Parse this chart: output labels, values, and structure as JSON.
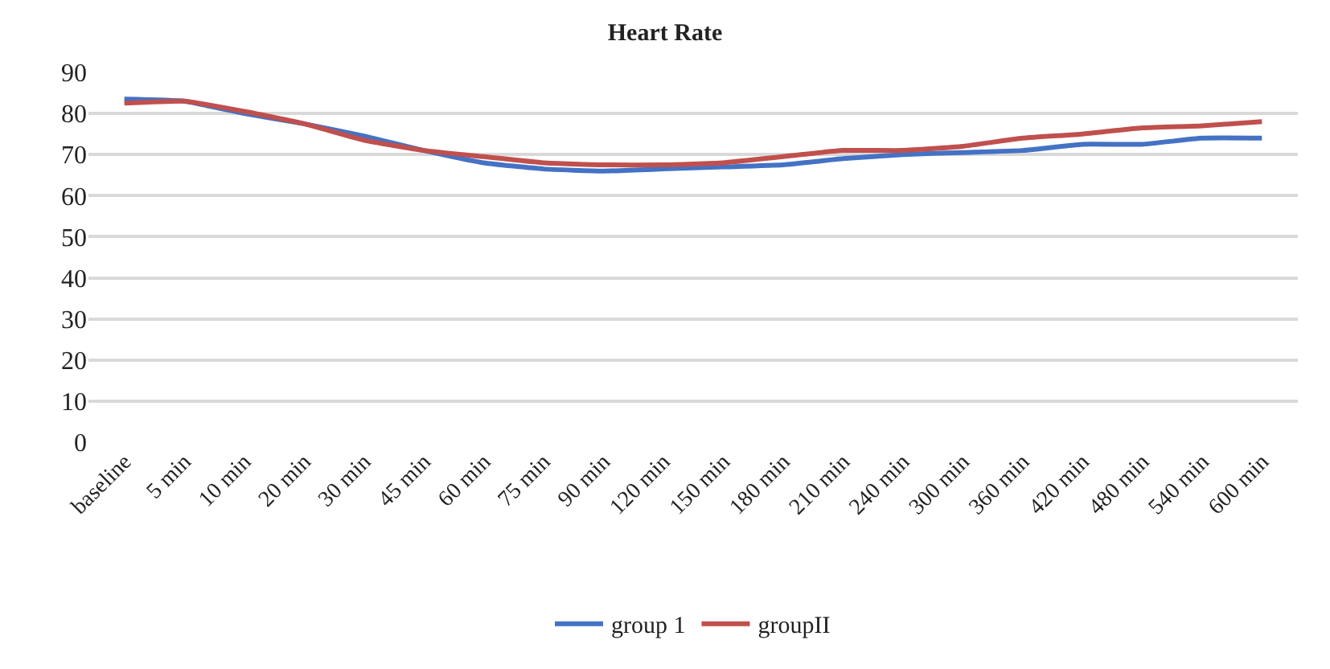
{
  "chart_data": {
    "type": "line",
    "title": "Heart Rate",
    "categories": [
      "baseline",
      "5 min",
      "10 min",
      "20 min",
      "30 min",
      "45 min",
      "60 min",
      "75 min",
      "90 min",
      "120 min",
      "150 min",
      "180 min",
      "210 min",
      "240 min",
      "300 min",
      "360 min",
      "420 min",
      "480 min",
      "540 min",
      "600 min"
    ],
    "series": [
      {
        "name": "group 1",
        "color": "#4472c4",
        "values": [
          83.5,
          83,
          80,
          77.5,
          74.5,
          71,
          68,
          66.5,
          66,
          66.5,
          67,
          67.5,
          69,
          70,
          70.5,
          71,
          72.5,
          72.5,
          74,
          74
        ]
      },
      {
        "name": "groupII",
        "color": "#c0504d",
        "values": [
          82.5,
          83,
          80.5,
          77.5,
          73.5,
          71,
          69.5,
          68,
          67.5,
          67.5,
          68,
          69.5,
          71,
          71,
          72,
          74,
          75,
          76.5,
          77,
          78
        ]
      }
    ],
    "ylim": [
      0,
      90
    ],
    "yticks": [
      0,
      10,
      20,
      30,
      40,
      50,
      60,
      70,
      80,
      90
    ],
    "grid": "y",
    "legend": "bottom",
    "marker": "none",
    "line_style": "solid"
  }
}
